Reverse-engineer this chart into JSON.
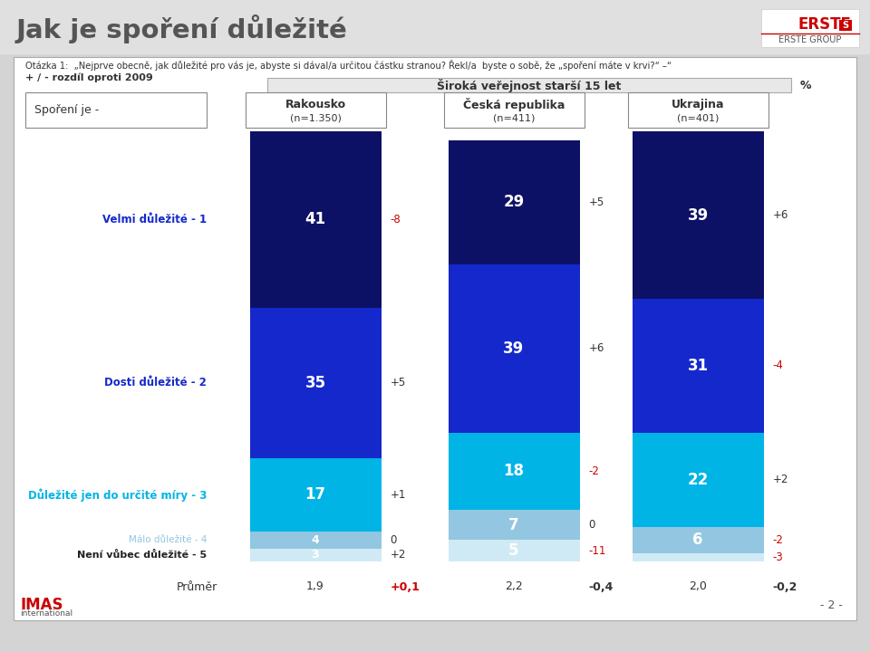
{
  "title": "Jak je spoření důležité",
  "subtitle_line1": "Otázka 1:  „Nejprve obecně, jak důležité pro vás je, abyste si dával/a určitou částku stranou? Řekl/a  byste o sobě, že „spoření máte v krvi?“ –“",
  "subtitle_line2": "+ / - rozdíl oproti 2009",
  "header_label": "Široká veřejnost starší 15 let",
  "header_pct": "%",
  "row_label": "Spoření je -",
  "columns": [
    {
      "name": "Rakousko",
      "n": "(n=1.350)"
    },
    {
      "name": "Česká republika",
      "n": "(n=411)"
    },
    {
      "name": "Ukrajina",
      "n": "(n=401)"
    }
  ],
  "categories": [
    "Velmi důležité - 1",
    "Dosti důležité - 2",
    "Důležité jen do určité míry - 3",
    "Málo důležité - 4",
    "Není vůbec důležité - 5"
  ],
  "values": [
    [
      41,
      35,
      17,
      4,
      3
    ],
    [
      29,
      39,
      18,
      7,
      5
    ],
    [
      39,
      31,
      22,
      6,
      2
    ]
  ],
  "diffs": [
    [
      "-8",
      "+5",
      "+1",
      "0",
      "+2"
    ],
    [
      "+5",
      "+6",
      "-2",
      "0",
      "-11"
    ],
    [
      "+6",
      "-4",
      "+2",
      "-2",
      "-3"
    ]
  ],
  "diff_colors": [
    [
      "red",
      "black",
      "black",
      "black",
      "black"
    ],
    [
      "black",
      "black",
      "red",
      "black",
      "red"
    ],
    [
      "black",
      "red",
      "black",
      "red",
      "red"
    ]
  ],
  "averages": [
    "1,9",
    "2,2",
    "2,0"
  ],
  "avg_diffs": [
    "+0,1",
    "-0,4",
    "-0,2"
  ],
  "avg_diff_colors": [
    "red",
    "black",
    "black"
  ],
  "seg_colors": [
    "#0d1165",
    "#1428cc",
    "#00b4e6",
    "#93c6e0",
    "#d0eaf5"
  ],
  "cat_label_colors": [
    "#1428cc",
    "#1428cc",
    "#00b4e6",
    "#93c6e0",
    "#222222"
  ],
  "footer_left": "IMAS",
  "footer_right": "- 2 -",
  "logo_text": "ERSTE GROUP"
}
